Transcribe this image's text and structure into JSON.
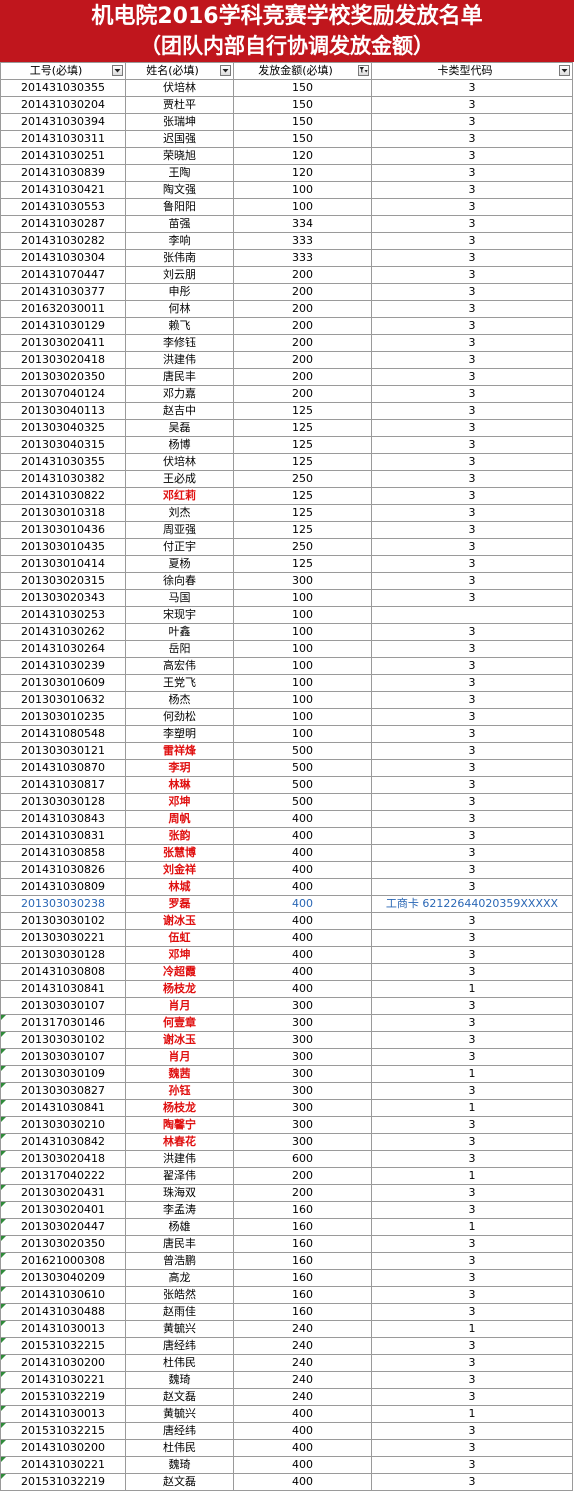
{
  "title": {
    "line1": "机电院2016学科竞赛学校奖励发放名单",
    "line2": "（团队内部自行协调发放金额）"
  },
  "headers": {
    "id": "工号(必填)",
    "name": "姓名(必填)",
    "amount": "发放金额(必填)",
    "code": "卡类型代码"
  },
  "rows": [
    {
      "id": "201431030355",
      "name": "伏培林",
      "amount": "150",
      "code": "3"
    },
    {
      "id": "201431030204",
      "name": "贾杜平",
      "amount": "150",
      "code": "3"
    },
    {
      "id": "201431030394",
      "name": "张瑞坤",
      "amount": "150",
      "code": "3"
    },
    {
      "id": "201431030311",
      "name": "迟国强",
      "amount": "150",
      "code": "3"
    },
    {
      "id": "201431030251",
      "name": "荣晓旭",
      "amount": "120",
      "code": "3"
    },
    {
      "id": "201431030839",
      "name": "王陶",
      "amount": "120",
      "code": "3"
    },
    {
      "id": "201431030421",
      "name": "陶文强",
      "amount": "100",
      "code": "3"
    },
    {
      "id": "201431030553",
      "name": "鲁阳阳",
      "amount": "100",
      "code": "3"
    },
    {
      "id": "201431030287",
      "name": "苗强",
      "amount": "334",
      "code": "3"
    },
    {
      "id": "201431030282",
      "name": "李响",
      "amount": "333",
      "code": "3"
    },
    {
      "id": "201431030304",
      "name": "张伟南",
      "amount": "333",
      "code": "3"
    },
    {
      "id": "201431070447",
      "name": "刘云朋",
      "amount": "200",
      "code": "3"
    },
    {
      "id": "201431030377",
      "name": "申彤",
      "amount": "200",
      "code": "3"
    },
    {
      "id": "201632030011",
      "name": "何林",
      "amount": "200",
      "code": "3"
    },
    {
      "id": "201431030129",
      "name": "赖飞",
      "amount": "200",
      "code": "3"
    },
    {
      "id": "201303020411",
      "name": "李修钰",
      "amount": "200",
      "code": "3"
    },
    {
      "id": "201303020418",
      "name": "洪建伟",
      "amount": "200",
      "code": "3"
    },
    {
      "id": "201303020350",
      "name": "唐民丰",
      "amount": "200",
      "code": "3"
    },
    {
      "id": "201307040124",
      "name": "邓力嘉",
      "amount": "200",
      "code": "3"
    },
    {
      "id": "201303040113",
      "name": "赵吉中",
      "amount": "125",
      "code": "3"
    },
    {
      "id": "201303040325",
      "name": "吴磊",
      "amount": "125",
      "code": "3"
    },
    {
      "id": "201303040315",
      "name": "杨博",
      "amount": "125",
      "code": "3"
    },
    {
      "id": "201431030355",
      "name": "伏培林",
      "amount": "125",
      "code": "3"
    },
    {
      "id": "201431030382",
      "name": "王必成",
      "amount": "250",
      "code": "3"
    },
    {
      "id": "201431030822",
      "name": "邓红莉",
      "amount": "125",
      "code": "3",
      "red": true
    },
    {
      "id": "201303010318",
      "name": "刘杰",
      "amount": "125",
      "code": "3"
    },
    {
      "id": "201303010436",
      "name": "周亚强",
      "amount": "125",
      "code": "3"
    },
    {
      "id": "201303010435",
      "name": "付正宇",
      "amount": "250",
      "code": "3"
    },
    {
      "id": "201303010414",
      "name": "夏杨",
      "amount": "125",
      "code": "3"
    },
    {
      "id": "201303020315",
      "name": "徐向春",
      "amount": "300",
      "code": "3"
    },
    {
      "id": "201303020343",
      "name": "马国",
      "amount": "100",
      "code": "3"
    },
    {
      "id": "201431030253",
      "name": "宋现宇",
      "amount": "100",
      "code": ""
    },
    {
      "id": "201431030262",
      "name": "叶鑫",
      "amount": "100",
      "code": "3"
    },
    {
      "id": "201431030264",
      "name": "岳阳",
      "amount": "100",
      "code": "3"
    },
    {
      "id": "201431030239",
      "name": "高宏伟",
      "amount": "100",
      "code": "3"
    },
    {
      "id": "201303010609",
      "name": "王党飞",
      "amount": "100",
      "code": "3"
    },
    {
      "id": "201303010632",
      "name": "杨杰",
      "amount": "100",
      "code": "3"
    },
    {
      "id": "201303010235",
      "name": "何劲松",
      "amount": "100",
      "code": "3"
    },
    {
      "id": "201431080548",
      "name": "李塑明",
      "amount": "100",
      "code": "3"
    },
    {
      "id": "201303030121",
      "name": "雷祥烽",
      "amount": "500",
      "code": "3",
      "red": true
    },
    {
      "id": "201431030870",
      "name": "李玥",
      "amount": "500",
      "code": "3",
      "red": true
    },
    {
      "id": "201431030817",
      "name": "林琳",
      "amount": "500",
      "code": "3",
      "red": true
    },
    {
      "id": "201303030128",
      "name": "邓坤",
      "amount": "500",
      "code": "3",
      "red": true
    },
    {
      "id": "201431030843",
      "name": "周帆",
      "amount": "400",
      "code": "3",
      "red": true
    },
    {
      "id": "201431030831",
      "name": "张韵",
      "amount": "400",
      "code": "3",
      "red": true
    },
    {
      "id": "201431030858",
      "name": "张慧博",
      "amount": "400",
      "code": "3",
      "red": true
    },
    {
      "id": "201431030826",
      "name": "刘金祥",
      "amount": "400",
      "code": "3",
      "red": true
    },
    {
      "id": "201431030809",
      "name": "林城",
      "amount": "400",
      "code": "3",
      "red": true
    },
    {
      "id": "201303030238",
      "name": "罗磊",
      "amount": "400",
      "code": "工商卡 62122644020359XXXXX",
      "red": true,
      "blue": true
    },
    {
      "id": "201303030102",
      "name": "谢冰玉",
      "amount": "400",
      "code": "3",
      "red": true
    },
    {
      "id": "201303030221",
      "name": "伍虹",
      "amount": "400",
      "code": "3",
      "red": true
    },
    {
      "id": "201303030128",
      "name": "邓坤",
      "amount": "400",
      "code": "3",
      "red": true
    },
    {
      "id": "201431030808",
      "name": "冷超霞",
      "amount": "400",
      "code": "3",
      "red": true
    },
    {
      "id": "201431030841",
      "name": "杨枝龙",
      "amount": "400",
      "code": "1",
      "red": true
    },
    {
      "id": "201303030107",
      "name": "肖月",
      "amount": "300",
      "code": "3",
      "red": true
    },
    {
      "id": "201317030146",
      "name": "何壹章",
      "amount": "300",
      "code": "3",
      "red": true,
      "tri": true
    },
    {
      "id": "201303030102",
      "name": "谢冰玉",
      "amount": "300",
      "code": "3",
      "red": true,
      "tri": true
    },
    {
      "id": "201303030107",
      "name": "肖月",
      "amount": "300",
      "code": "3",
      "red": true,
      "tri": true
    },
    {
      "id": "201303030109",
      "name": "魏茜",
      "amount": "300",
      "code": "1",
      "red": true,
      "tri": true
    },
    {
      "id": "201303030827",
      "name": "孙钰",
      "amount": "300",
      "code": "3",
      "red": true,
      "tri": true
    },
    {
      "id": "201431030841",
      "name": "杨枝龙",
      "amount": "300",
      "code": "1",
      "red": true,
      "tri": true
    },
    {
      "id": "201303030210",
      "name": "陶馨宁",
      "amount": "300",
      "code": "3",
      "red": true,
      "tri": true
    },
    {
      "id": "201431030842",
      "name": "林春花",
      "amount": "300",
      "code": "3",
      "red": true,
      "tri": true
    },
    {
      "id": "201303020418",
      "name": "洪建伟",
      "amount": "600",
      "code": "3",
      "tri": true
    },
    {
      "id": "201317040222",
      "name": "翟泽伟",
      "amount": "200",
      "code": "1",
      "tri": true
    },
    {
      "id": "201303020431",
      "name": "珠海双",
      "amount": "200",
      "code": "3",
      "tri": true
    },
    {
      "id": "201303020401",
      "name": "李孟涛",
      "amount": "160",
      "code": "3",
      "tri": true
    },
    {
      "id": "201303020447",
      "name": "杨雄",
      "amount": "160",
      "code": "1",
      "tri": true
    },
    {
      "id": "201303020350",
      "name": "唐民丰",
      "amount": "160",
      "code": "3",
      "tri": true
    },
    {
      "id": "201621000308",
      "name": "曾浩鹏",
      "amount": "160",
      "code": "3",
      "tri": true
    },
    {
      "id": "201303040209",
      "name": "高龙",
      "amount": "160",
      "code": "3",
      "tri": true
    },
    {
      "id": "201431030610",
      "name": "张皓然",
      "amount": "160",
      "code": "3",
      "tri": true
    },
    {
      "id": "201431030488",
      "name": "赵雨佳",
      "amount": "160",
      "code": "3",
      "tri": true
    },
    {
      "id": "201431030013",
      "name": "黄毓兴",
      "amount": "240",
      "code": "1",
      "tri": true
    },
    {
      "id": "201531032215",
      "name": "唐经纬",
      "amount": "240",
      "code": "3",
      "tri": true
    },
    {
      "id": "201431030200",
      "name": "杜伟民",
      "amount": "240",
      "code": "3",
      "tri": true
    },
    {
      "id": "201431030221",
      "name": "魏琦",
      "amount": "240",
      "code": "3",
      "tri": true
    },
    {
      "id": "201531032219",
      "name": "赵文磊",
      "amount": "240",
      "code": "3",
      "tri": true
    },
    {
      "id": "201431030013",
      "name": "黄毓兴",
      "amount": "400",
      "code": "1",
      "tri": true
    },
    {
      "id": "201531032215",
      "name": "唐经纬",
      "amount": "400",
      "code": "3",
      "tri": true
    },
    {
      "id": "201431030200",
      "name": "杜伟民",
      "amount": "400",
      "code": "3",
      "tri": true
    },
    {
      "id": "201431030221",
      "name": "魏琦",
      "amount": "400",
      "code": "3",
      "tri": true
    },
    {
      "id": "201531032219",
      "name": "赵文磊",
      "amount": "400",
      "code": "3",
      "tri": true
    }
  ]
}
